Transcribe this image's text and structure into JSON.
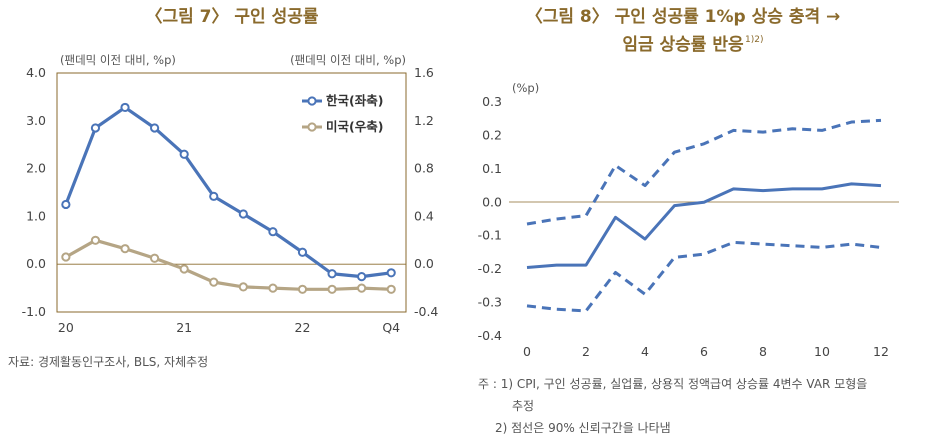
{
  "figure7": {
    "title": "〈그림 7〉 구인 성공률",
    "left_unit": "(팬데믹 이전 대비, %p)",
    "right_unit": "(팬데믹 이전 대비, %p)",
    "source": "자료: 경제활동인구조사, BLS, 자체추정"
  },
  "figure8": {
    "title_line1": "〈그림 8〉 구인 성공률 1%p 상승 충격 →",
    "title_line2": "임금 상승률 반응",
    "title_sup": "1)2)",
    "unit": "(%p)",
    "notes": [
      "주 : 1) CPI, 구인 성공률, 실업률, 상용직 정액급여 상승률 4변수 VAR 모형을",
      "추정",
      "2) 점선은 90% 신뢰구간을 나타냄"
    ]
  },
  "colors": {
    "korea": "#4a74b8",
    "us": "#b5a585",
    "frame": "#8a6a2c",
    "grid": "#e8e8e8"
  },
  "chart_data": [
    {
      "type": "line",
      "title": "〈그림 7〉 구인 성공률",
      "x": [
        1,
        2,
        3,
        4,
        5,
        6,
        7,
        8,
        9,
        10,
        11,
        12
      ],
      "xticks": [
        {
          "x": 1,
          "label": "20"
        },
        {
          "x": 5,
          "label": "21"
        },
        {
          "x": 9,
          "label": "22"
        },
        {
          "x": 12,
          "label": "Q4"
        }
      ],
      "xlim": [
        0.7,
        12.5
      ],
      "ylim_left": [
        -1.0,
        4.0
      ],
      "yticks_left": [
        "4.0",
        "3.0",
        "2.0",
        "1.0",
        "0.0",
        "-1.0"
      ],
      "ylim_right": [
        -0.4,
        1.6
      ],
      "yticks_right": [
        "1.6",
        "1.2",
        "0.8",
        "0.4",
        "0.0",
        "-0.4"
      ],
      "legend_position": "top-right",
      "series": [
        {
          "name": "한국(좌축)",
          "axis": "left",
          "marker": "filled",
          "values": [
            1.25,
            2.85,
            3.28,
            2.85,
            2.3,
            1.42,
            1.05,
            0.68,
            0.25,
            -0.2,
            -0.26,
            -0.18
          ]
        },
        {
          "name": "미국(우축)",
          "axis": "right",
          "marker": "filled",
          "values": [
            0.06,
            0.2,
            0.13,
            0.05,
            -0.04,
            -0.15,
            -0.19,
            -0.2,
            -0.21,
            -0.21,
            -0.2,
            -0.21
          ]
        }
      ]
    },
    {
      "type": "line",
      "title": "〈그림 8〉 구인 성공률 1%p 상승 충격 → 임금 상승률 반응",
      "x": [
        0,
        1,
        2,
        3,
        4,
        5,
        6,
        7,
        8,
        9,
        10,
        11,
        12
      ],
      "xticks": [
        "0",
        "2",
        "4",
        "6",
        "8",
        "10",
        "12"
      ],
      "xlim": [
        -0.2,
        12.2
      ],
      "ylim": [
        -0.4,
        0.3
      ],
      "yticks": [
        "0.3",
        "0.2",
        "0.1",
        "0.0",
        "-0.1",
        "-0.2",
        "-0.3",
        "-0.4"
      ],
      "series": [
        {
          "name": "",
          "style": "solid",
          "values": [
            -0.195,
            -0.188,
            -0.188,
            -0.045,
            -0.11,
            -0.01,
            0.0,
            0.04,
            0.035,
            0.04,
            0.04,
            0.055,
            0.05
          ]
        },
        {
          "name": "",
          "style": "dashed",
          "values": [
            -0.065,
            -0.05,
            -0.04,
            0.11,
            0.05,
            0.15,
            0.175,
            0.215,
            0.21,
            0.22,
            0.215,
            0.24,
            0.245
          ]
        },
        {
          "name": "",
          "style": "dashed",
          "values": [
            -0.31,
            -0.32,
            -0.325,
            -0.21,
            -0.275,
            -0.165,
            -0.155,
            -0.12,
            -0.125,
            -0.13,
            -0.135,
            -0.125,
            -0.135
          ]
        }
      ]
    }
  ]
}
